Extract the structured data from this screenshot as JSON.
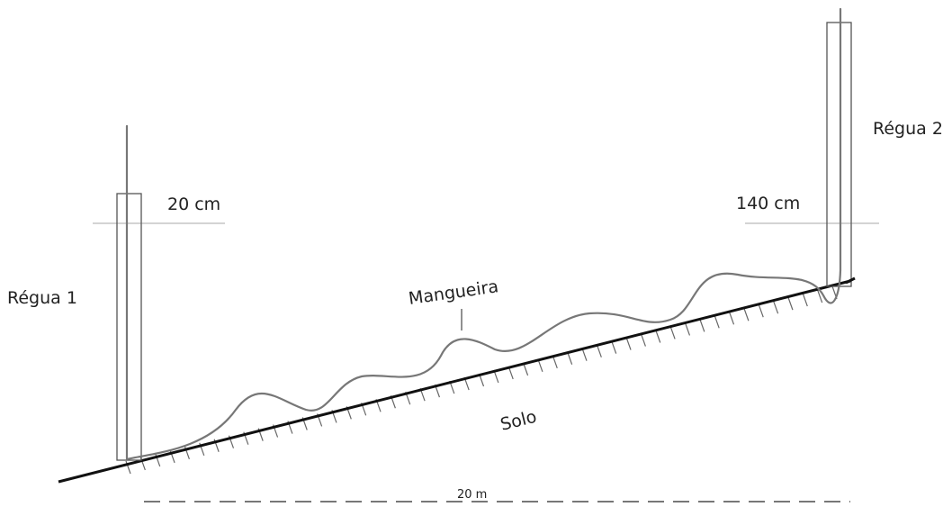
{
  "labels": {
    "ruler_1": "Régua 1",
    "ruler_2": "Régua 2",
    "reading_1": "20 cm",
    "reading_2": "140 cm",
    "hose": "Mangueira",
    "ground": "Solo",
    "distance": "20 m"
  },
  "colors": {
    "ground": "#111111",
    "hose": "#777777",
    "ruler": "#555555",
    "guide": "#bbbbbb",
    "dimension": "#777777"
  }
}
